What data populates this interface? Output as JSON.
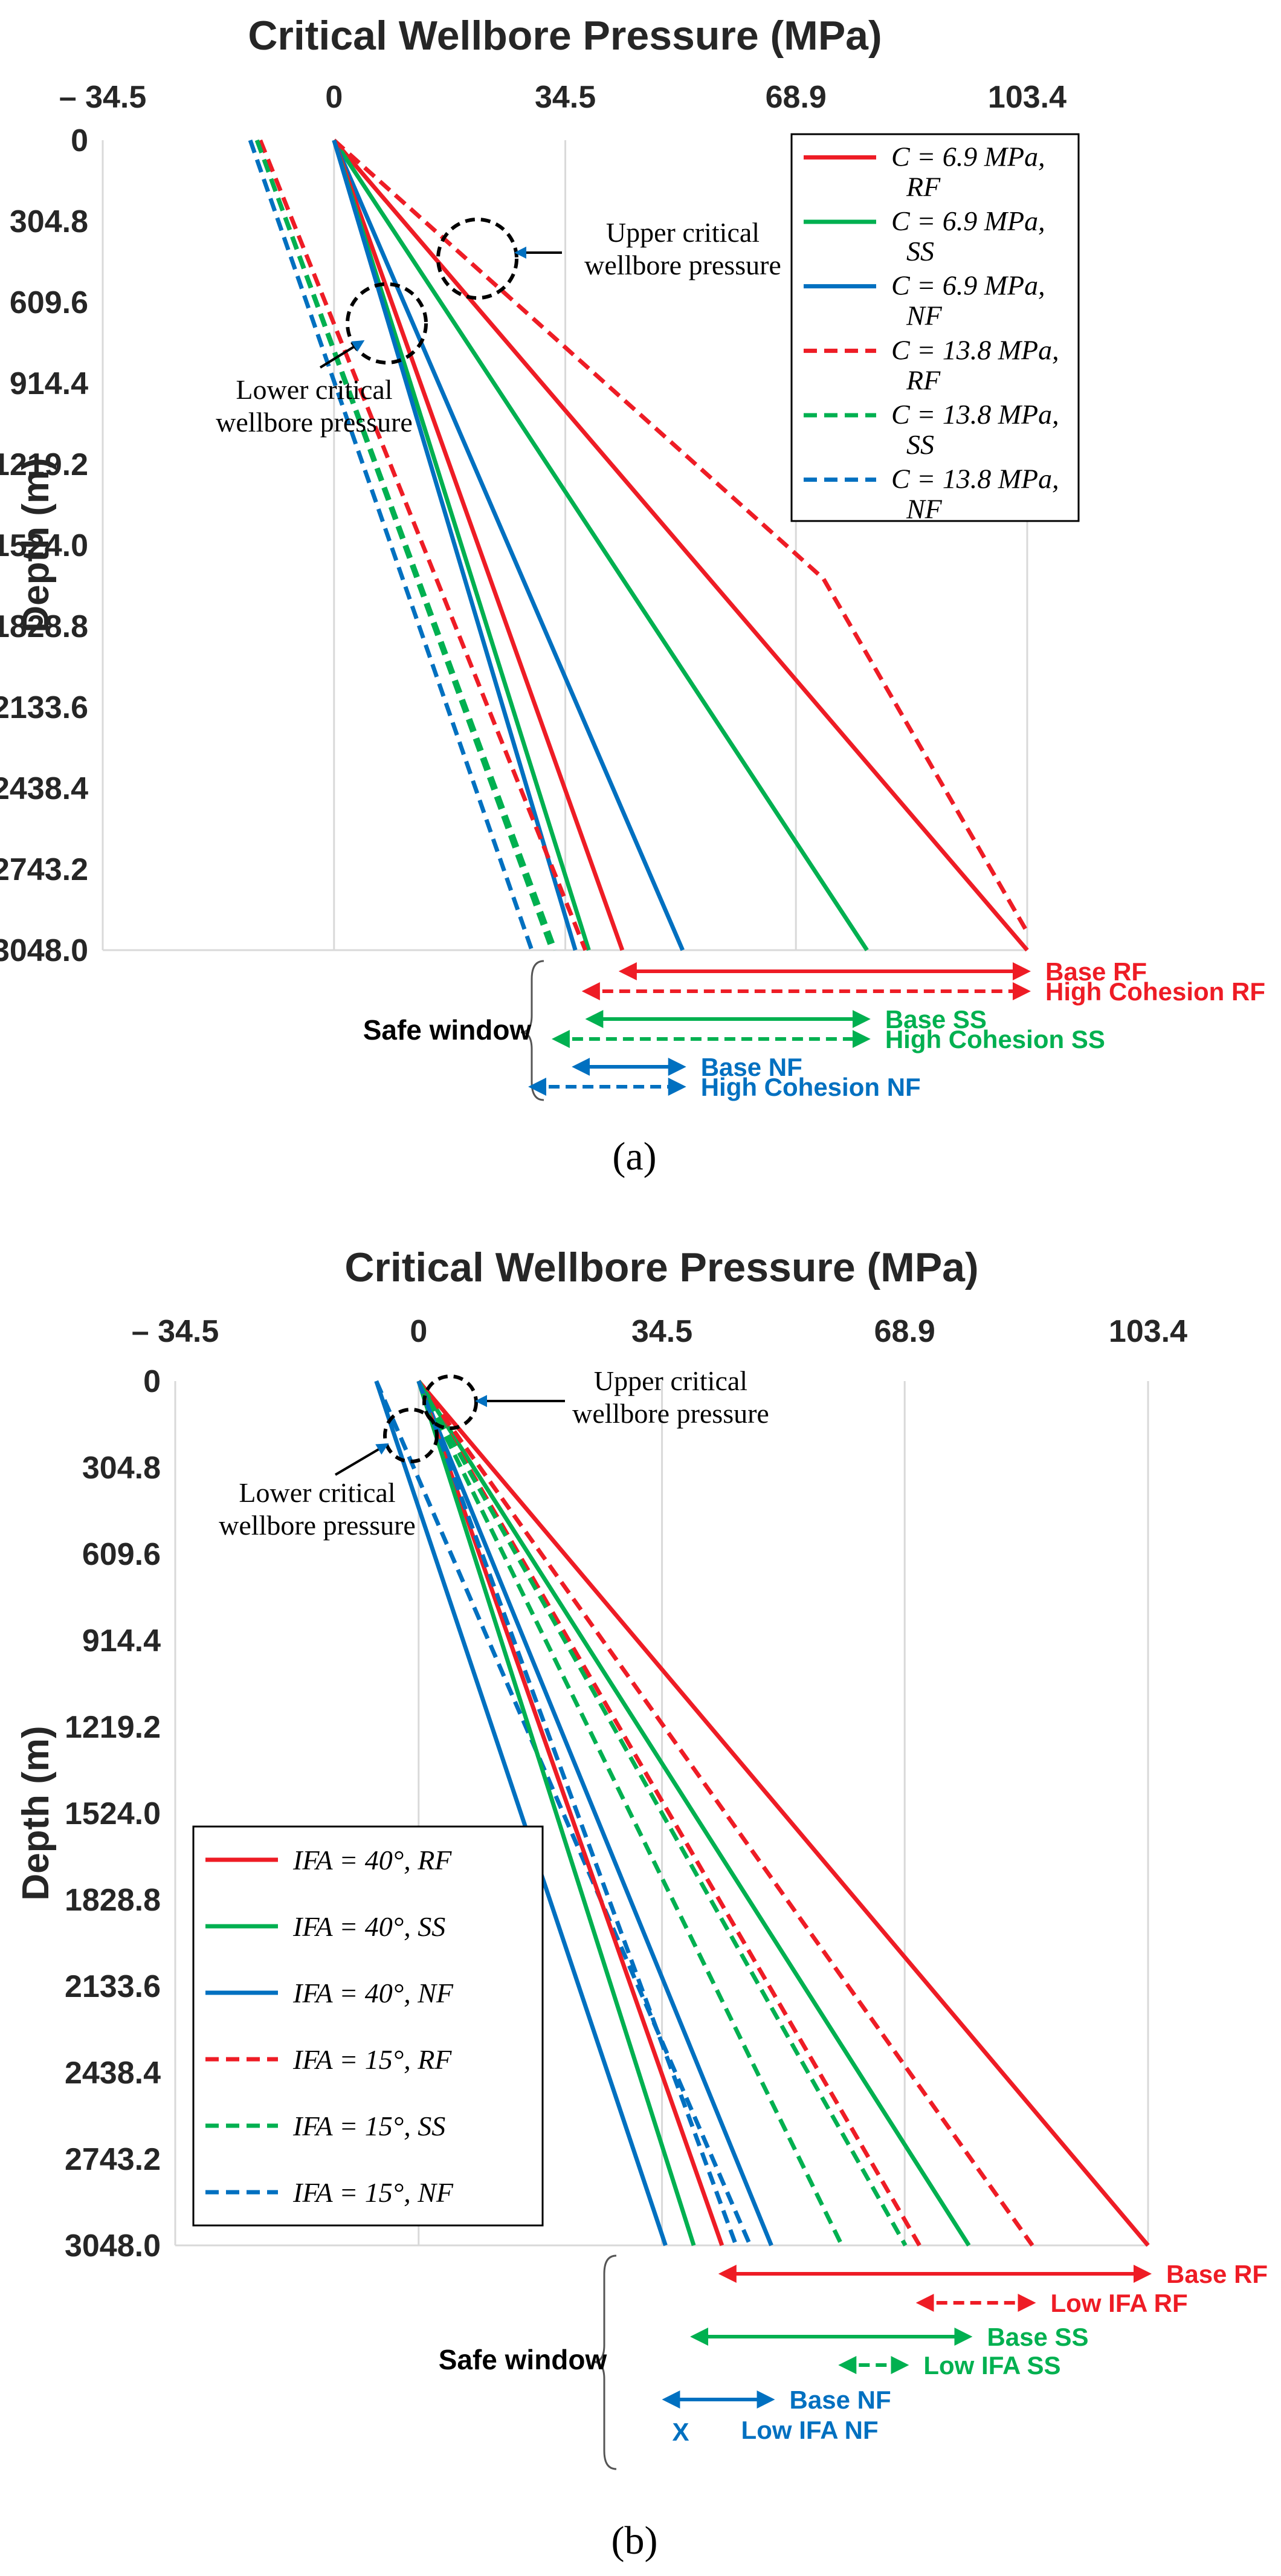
{
  "colors": {
    "RF": "#ee1c25",
    "SS": "#00b050",
    "NF": "#0070c0"
  },
  "chart_data": [
    {
      "panel": "a",
      "caption_letter": "a",
      "type": "line",
      "title": "Critical Wellbore Pressure (MPa)",
      "ylabel": "Depth (m)",
      "xlim": [
        -34.5,
        103.4
      ],
      "ylim": [
        0,
        3048.0
      ],
      "y_inverted": true,
      "grid": true,
      "x_ticks": [
        {
          "value": -34.5,
          "label": "– 34.5"
        },
        {
          "value": 0,
          "label": "0"
        },
        {
          "value": 34.5,
          "label": "34.5"
        },
        {
          "value": 68.9,
          "label": "68.9"
        },
        {
          "value": 103.4,
          "label": "103.4"
        }
      ],
      "y_ticks": [
        {
          "value": 0,
          "label": "0"
        },
        {
          "value": 304.8,
          "label": "304.8"
        },
        {
          "value": 609.6,
          "label": "609.6"
        },
        {
          "value": 914.4,
          "label": "914.4"
        },
        {
          "value": 1219.2,
          "label": "1219.2"
        },
        {
          "value": 1524.0,
          "label": "1524.0"
        },
        {
          "value": 1828.8,
          "label": "1828.8"
        },
        {
          "value": 2133.6,
          "label": "2133.6"
        },
        {
          "value": 2438.4,
          "label": "2438.4"
        },
        {
          "value": 2743.2,
          "label": "2743.2"
        },
        {
          "value": 3048.0,
          "label": "3048.0"
        }
      ],
      "legend_position": "top-right",
      "series": [
        {
          "id": "c69-rf",
          "label_main": "C = 6.9 MPa,",
          "label_sub": "RF",
          "color": "RF",
          "dash": false,
          "points": [
            [
              0,
              0
            ],
            [
              103.4,
              3048.0
            ]
          ]
        },
        {
          "id": "c69-ss",
          "label_main": "C = 6.9 MPa,",
          "label_sub": "SS",
          "color": "SS",
          "dash": false,
          "points": [
            [
              0,
              0
            ],
            [
              79.5,
              3048.0
            ]
          ]
        },
        {
          "id": "c69-nf",
          "label_main": "C = 6.9 MPa,",
          "label_sub": "NF",
          "color": "NF",
          "dash": false,
          "points": [
            [
              0,
              0
            ],
            [
              52.0,
              3048.0
            ]
          ]
        },
        {
          "id": "c138-rf",
          "label_main": "C = 13.8 MPa,",
          "label_sub": "RF",
          "color": "RF",
          "dash": true,
          "points": [
            [
              0,
              0
            ],
            [
              73.0,
              1650.0
            ],
            [
              103.4,
              2980.0
            ]
          ]
        },
        {
          "id": "c138-ss",
          "label_main": "C = 13.8 MPa,",
          "label_sub": "SS",
          "color": "SS",
          "dash": true,
          "points": [
            [
              -11.5,
              0
            ],
            [
              32.5,
              3048.0
            ]
          ]
        },
        {
          "id": "c138-nf",
          "label_main": "C = 13.8 MPa,",
          "label_sub": "NF",
          "color": "NF",
          "dash": true,
          "points": [
            [
              -12.5,
              0
            ],
            [
              29.5,
              3048.0
            ]
          ]
        },
        {
          "id": "low-rf",
          "color": "RF",
          "dash": false,
          "points": [
            [
              0,
              0
            ],
            [
              43.0,
              3048.0
            ]
          ]
        },
        {
          "id": "low-ss",
          "color": "SS",
          "dash": false,
          "points": [
            [
              0,
              0
            ],
            [
              38.0,
              3048.0
            ]
          ]
        },
        {
          "id": "low-nf",
          "color": "NF",
          "dash": false,
          "points": [
            [
              0,
              0
            ],
            [
              36.0,
              3048.0
            ]
          ]
        },
        {
          "id": "low-rf-d",
          "color": "RF",
          "dash": true,
          "points": [
            [
              -11.0,
              0
            ],
            [
              37.5,
              3048.0
            ]
          ]
        },
        {
          "id": "low-ss-d",
          "color": "SS",
          "dash": true,
          "points": [
            [
              -11.5,
              0
            ],
            [
              33.0,
              3048.0
            ]
          ]
        }
      ],
      "annotations": [
        {
          "lines": [
            "Upper critical",
            "wellbore pressure"
          ],
          "x": 14.5,
          "y": 460
        },
        {
          "lines": [
            "Lower critical",
            "wellbore pressure"
          ],
          "x": 0.5,
          "y": 690
        }
      ],
      "safe_window": {
        "label": "Safe window",
        "arrows": [
          {
            "label": "Base RF",
            "color": "RF",
            "dash": false,
            "from": 43.0,
            "to": 103.4
          },
          {
            "label": "High Cohesion RF",
            "color": "RF",
            "dash": true,
            "from": 37.5,
            "to": 103.4
          },
          {
            "label": "Base SS",
            "color": "SS",
            "dash": false,
            "from": 38.0,
            "to": 79.5
          },
          {
            "label": "High Cohesion SS",
            "color": "SS",
            "dash": true,
            "from": 33.0,
            "to": 79.5
          },
          {
            "label": "Base NF",
            "color": "NF",
            "dash": false,
            "from": 36.0,
            "to": 52.0
          },
          {
            "label": "High Cohesion NF",
            "color": "NF",
            "dash": true,
            "from": 29.5,
            "to": 52.0
          }
        ]
      }
    },
    {
      "panel": "b",
      "caption_letter": "b",
      "type": "line",
      "title": "Critical Wellbore Pressure (MPa)",
      "ylabel": "Depth (m)",
      "xlim": [
        -34.5,
        103.4
      ],
      "ylim": [
        0,
        3048.0
      ],
      "y_inverted": true,
      "grid": true,
      "x_ticks": [
        {
          "value": -34.5,
          "label": "– 34.5"
        },
        {
          "value": 0,
          "label": "0"
        },
        {
          "value": 34.5,
          "label": "34.5"
        },
        {
          "value": 68.9,
          "label": "68.9"
        },
        {
          "value": 103.4,
          "label": "103.4"
        }
      ],
      "y_ticks": [
        {
          "value": 0,
          "label": "0"
        },
        {
          "value": 304.8,
          "label": "304.8"
        },
        {
          "value": 609.6,
          "label": "609.6"
        },
        {
          "value": 914.4,
          "label": "914.4"
        },
        {
          "value": 1219.2,
          "label": "1219.2"
        },
        {
          "value": 1524.0,
          "label": "1524.0"
        },
        {
          "value": 1828.8,
          "label": "1828.8"
        },
        {
          "value": 2133.6,
          "label": "2133.6"
        },
        {
          "value": 2438.4,
          "label": "2438.4"
        },
        {
          "value": 2743.2,
          "label": "2743.2"
        },
        {
          "value": 3048.0,
          "label": "3048.0"
        }
      ],
      "legend_position": "bottom-left",
      "series": [
        {
          "id": "ifa40-rf",
          "label_main": "IFA = 40°,",
          "label_sub": "RF",
          "color": "RF",
          "dash": false,
          "points": [
            [
              0,
              0
            ],
            [
              103.4,
              3048.0
            ]
          ]
        },
        {
          "id": "ifa40-ss",
          "label_main": "IFA = 40°,",
          "label_sub": "SS",
          "color": "SS",
          "dash": false,
          "points": [
            [
              0,
              0
            ],
            [
              78.0,
              3048.0
            ]
          ]
        },
        {
          "id": "ifa40-nf",
          "label_main": "IFA = 40°,",
          "label_sub": "NF",
          "color": "NF",
          "dash": false,
          "points": [
            [
              0,
              0
            ],
            [
              50.0,
              3048.0
            ]
          ]
        },
        {
          "id": "ifa15-rf",
          "label_main": "IFA = 15°,",
          "label_sub": "RF",
          "color": "RF",
          "dash": true,
          "points": [
            [
              0,
              0
            ],
            [
              87.0,
              3048.0
            ]
          ]
        },
        {
          "id": "ifa15-ss",
          "label_main": "IFA = 15°,",
          "label_sub": "SS",
          "color": "SS",
          "dash": true,
          "points": [
            [
              0,
              0
            ],
            [
              60.0,
              3048.0
            ]
          ]
        },
        {
          "id": "ifa15-nf",
          "label_main": "IFA = 15°,",
          "label_sub": "NF",
          "color": "NF",
          "dash": true,
          "points": [
            [
              -6.0,
              0
            ],
            [
              47.0,
              3048.0
            ]
          ]
        },
        {
          "id": "low-rf",
          "color": "RF",
          "dash": false,
          "points": [
            [
              0,
              0
            ],
            [
              43.0,
              3048.0
            ]
          ]
        },
        {
          "id": "low-ss",
          "color": "SS",
          "dash": false,
          "points": [
            [
              0,
              0
            ],
            [
              39.0,
              3048.0
            ]
          ]
        },
        {
          "id": "low-nf",
          "color": "NF",
          "dash": false,
          "points": [
            [
              -6.0,
              0
            ],
            [
              35.0,
              3048.0
            ]
          ]
        },
        {
          "id": "low-rf-d",
          "color": "RF",
          "dash": true,
          "points": [
            [
              0,
              0
            ],
            [
              71.0,
              3048.0
            ]
          ]
        },
        {
          "id": "low-ss-d",
          "color": "SS",
          "dash": true,
          "points": [
            [
              0,
              0
            ],
            [
              69.0,
              3048.0
            ]
          ]
        },
        {
          "id": "low-nf-d",
          "color": "NF",
          "dash": true,
          "points": [
            [
              0,
              0
            ],
            [
              45.0,
              3048.0
            ]
          ]
        }
      ],
      "annotations": [
        {
          "lines": [
            "Upper critical",
            "wellbore pressure"
          ],
          "x": 3.5,
          "y": 90
        },
        {
          "lines": [
            "Lower critical",
            "wellbore pressure"
          ],
          "x": -2.0,
          "y": 300
        }
      ],
      "safe_window": {
        "label": "Safe window",
        "arrows": [
          {
            "label": "Base RF",
            "color": "RF",
            "dash": false,
            "from": 43.0,
            "to": 103.4
          },
          {
            "label": "Low IFA RF",
            "color": "RF",
            "dash": true,
            "from": 71.0,
            "to": 87.0
          },
          {
            "label": "Base SS",
            "color": "SS",
            "dash": false,
            "from": 39.0,
            "to": 78.0
          },
          {
            "label": "Low IFA SS",
            "color": "SS",
            "dash": true,
            "from": 60.0,
            "to": 69.0
          },
          {
            "label": "Base NF",
            "color": "NF",
            "dash": false,
            "from": 35.0,
            "to": 50.0
          },
          {
            "label": "Low IFA NF",
            "color": "NF",
            "dash": false,
            "from": null,
            "to": null,
            "marker": "X"
          }
        ]
      }
    }
  ]
}
